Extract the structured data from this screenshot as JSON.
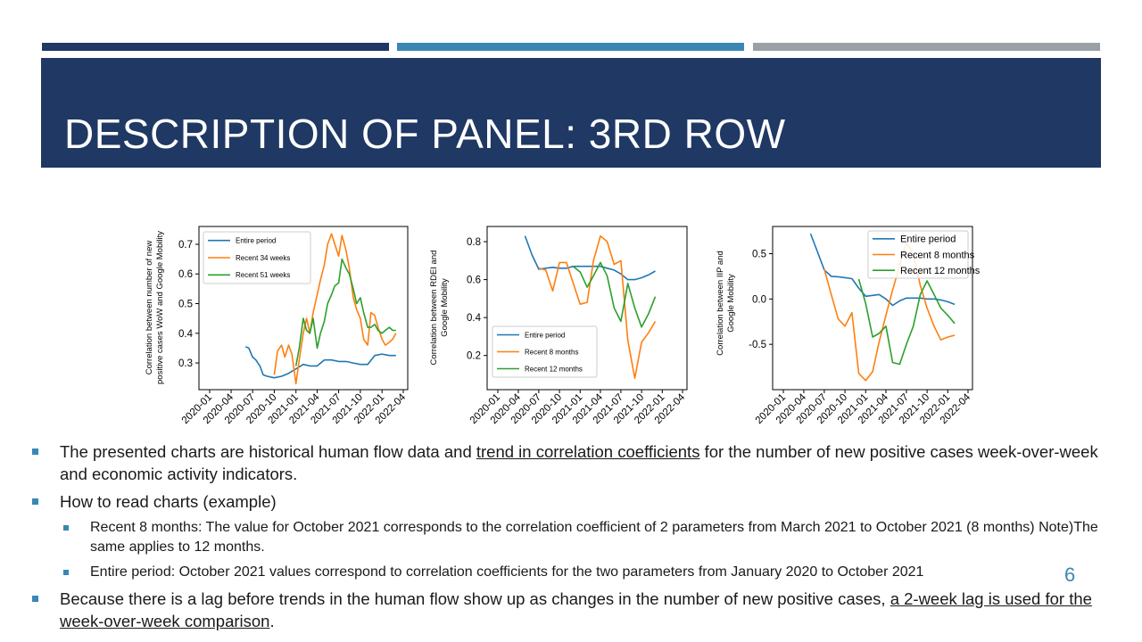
{
  "slide": {
    "title": "DESCRIPTION OF PANEL: 3RD ROW",
    "page_number": "6",
    "colors": {
      "dark_blue": "#1f3864",
      "mid_blue": "#3a87b4",
      "gray": "#9aa0a6",
      "series_blue": "#1f77b4",
      "series_orange": "#ff7f0e",
      "series_green": "#2ca02c"
    }
  },
  "chart_data": [
    {
      "type": "line",
      "ylabel": "Correlation between number of new positive cases WoW and Google Mobility",
      "ylabel_lines": [
        "Correlation between number of new",
        "positive cases WoW and Google Mobility"
      ],
      "xlabel": "",
      "x_ticks": [
        "2020-01",
        "2020-04",
        "2020-07",
        "2020-10",
        "2021-01",
        "2021-04",
        "2021-07",
        "2021-10",
        "2022-01",
        "2022-04"
      ],
      "y_ticks": [
        "0.3",
        "0.4",
        "0.5",
        "0.6",
        "0.7"
      ],
      "ylim": [
        0.21,
        0.76
      ],
      "legend_position": "top-left",
      "series": [
        {
          "name": "Entire period",
          "x": [
            "2020-06-01",
            "2020-06-15",
            "2020-07-01",
            "2020-07-15",
            "2020-08-01",
            "2020-08-15",
            "2020-09-01",
            "2020-10-01",
            "2020-11-01",
            "2020-12-01",
            "2021-01-01",
            "2021-02-01",
            "2021-03-01",
            "2021-04-01",
            "2021-05-01",
            "2021-06-01",
            "2021-07-01",
            "2021-08-01",
            "2021-09-01",
            "2021-10-01",
            "2021-11-01",
            "2021-12-01",
            "2022-01-01",
            "2022-02-01",
            "2022-03-01"
          ],
          "y": [
            0.355,
            0.35,
            0.32,
            0.31,
            0.29,
            0.26,
            0.255,
            0.25,
            0.255,
            0.265,
            0.28,
            0.295,
            0.29,
            0.29,
            0.31,
            0.31,
            0.305,
            0.305,
            0.3,
            0.295,
            0.295,
            0.325,
            0.33,
            0.325,
            0.325
          ]
        },
        {
          "name": "Recent 34 weeks",
          "x": [
            "2020-10-01",
            "2020-10-15",
            "2020-11-01",
            "2020-11-15",
            "2020-12-01",
            "2020-12-15",
            "2021-01-01",
            "2021-01-15",
            "2021-02-01",
            "2021-02-15",
            "2021-03-01",
            "2021-03-15",
            "2021-04-01",
            "2021-04-15",
            "2021-05-01",
            "2021-05-15",
            "2021-06-01",
            "2021-06-15",
            "2021-07-01",
            "2021-07-15",
            "2021-08-01",
            "2021-08-15",
            "2021-09-01",
            "2021-09-15",
            "2021-10-01",
            "2021-10-15",
            "2021-11-01",
            "2021-11-15",
            "2021-12-01",
            "2021-12-15",
            "2022-01-01",
            "2022-01-15",
            "2022-02-01",
            "2022-02-15",
            "2022-03-01"
          ],
          "y": [
            0.26,
            0.34,
            0.36,
            0.32,
            0.36,
            0.33,
            0.23,
            0.31,
            0.4,
            0.45,
            0.4,
            0.47,
            0.53,
            0.58,
            0.63,
            0.7,
            0.735,
            0.7,
            0.66,
            0.73,
            0.68,
            0.62,
            0.52,
            0.48,
            0.45,
            0.38,
            0.36,
            0.47,
            0.46,
            0.42,
            0.38,
            0.36,
            0.37,
            0.38,
            0.4
          ]
        },
        {
          "name": "Recent 51 weeks",
          "x": [
            "2021-01-01",
            "2021-01-15",
            "2021-02-01",
            "2021-02-15",
            "2021-03-01",
            "2021-03-15",
            "2021-04-01",
            "2021-04-15",
            "2021-05-01",
            "2021-05-15",
            "2021-06-01",
            "2021-06-15",
            "2021-07-01",
            "2021-07-15",
            "2021-08-01",
            "2021-08-15",
            "2021-09-01",
            "2021-09-15",
            "2021-10-01",
            "2021-10-15",
            "2021-11-01",
            "2021-11-15",
            "2021-12-01",
            "2021-12-15",
            "2022-01-01",
            "2022-01-15",
            "2022-02-01",
            "2022-02-15",
            "2022-03-01"
          ],
          "y": [
            0.29,
            0.35,
            0.45,
            0.41,
            0.4,
            0.45,
            0.35,
            0.4,
            0.44,
            0.5,
            0.53,
            0.56,
            0.57,
            0.65,
            0.62,
            0.6,
            0.55,
            0.5,
            0.52,
            0.47,
            0.42,
            0.42,
            0.43,
            0.41,
            0.4,
            0.41,
            0.42,
            0.41,
            0.41
          ]
        }
      ]
    },
    {
      "type": "line",
      "ylabel": "Correlation between RDEI and Google Mobility",
      "ylabel_lines": [
        "Correlation between RDEI and",
        "Google Mobility"
      ],
      "xlabel": "",
      "x_ticks": [
        "2020-01",
        "2020-04",
        "2020-07",
        "2020-10",
        "2021-01",
        "2021-04",
        "2021-07",
        "2021-10",
        "2022-01",
        "2022-04"
      ],
      "y_ticks": [
        "0.2",
        "0.4",
        "0.6",
        "0.8"
      ],
      "ylim": [
        0.02,
        0.88
      ],
      "legend_position": "lower-left",
      "series": [
        {
          "name": "Entire period",
          "x": [
            "2020-05-01",
            "2020-06-01",
            "2020-07-01",
            "2020-08-01",
            "2020-09-01",
            "2020-10-01",
            "2020-11-01",
            "2020-12-01",
            "2021-01-01",
            "2021-02-01",
            "2021-03-01",
            "2021-04-01",
            "2021-05-01",
            "2021-06-01",
            "2021-07-01",
            "2021-08-01",
            "2021-09-01",
            "2021-10-01",
            "2021-11-01",
            "2021-12-01"
          ],
          "y": [
            0.83,
            0.73,
            0.655,
            0.66,
            0.665,
            0.66,
            0.66,
            0.67,
            0.67,
            0.67,
            0.67,
            0.67,
            0.66,
            0.65,
            0.63,
            0.6,
            0.6,
            0.61,
            0.625,
            0.645
          ]
        },
        {
          "name": "Recent 8 months",
          "x": [
            "2020-07-01",
            "2020-08-01",
            "2020-09-01",
            "2020-10-01",
            "2020-11-01",
            "2020-12-01",
            "2021-01-01",
            "2021-02-01",
            "2021-03-01",
            "2021-04-01",
            "2021-05-01",
            "2021-06-01",
            "2021-07-01",
            "2021-08-01",
            "2021-09-01",
            "2021-10-01",
            "2021-11-01",
            "2021-12-01"
          ],
          "y": [
            0.66,
            0.65,
            0.54,
            0.69,
            0.69,
            0.58,
            0.47,
            0.48,
            0.7,
            0.83,
            0.8,
            0.68,
            0.7,
            0.28,
            0.08,
            0.27,
            0.32,
            0.38
          ]
        },
        {
          "name": "Recent 12 months",
          "x": [
            "2020-12-01",
            "2021-01-01",
            "2021-02-01",
            "2021-03-01",
            "2021-04-01",
            "2021-05-01",
            "2021-06-01",
            "2021-07-01",
            "2021-08-01",
            "2021-09-01",
            "2021-10-01",
            "2021-11-01",
            "2021-12-01"
          ],
          "y": [
            0.67,
            0.64,
            0.56,
            0.62,
            0.69,
            0.62,
            0.45,
            0.38,
            0.58,
            0.45,
            0.35,
            0.42,
            0.51
          ]
        }
      ]
    },
    {
      "type": "line",
      "ylabel": "Correlation between IIP and Google Mobility",
      "ylabel_lines": [
        "Correlation between IIP and",
        "Google Mobility"
      ],
      "xlabel": "",
      "x_ticks": [
        "2020-01",
        "2020-04",
        "2020-07",
        "2020-10",
        "2021-01",
        "2021-04",
        "2021-07",
        "2021-10",
        "2022-01",
        "2022-04"
      ],
      "y_ticks": [
        "-0.5",
        "0.0",
        "0.5"
      ],
      "ylim": [
        -1.0,
        0.8
      ],
      "legend_position": "top-right",
      "series": [
        {
          "name": "Entire period",
          "x": [
            "2020-05-01",
            "2020-06-01",
            "2020-07-01",
            "2020-08-01",
            "2020-09-01",
            "2020-10-01",
            "2020-11-01",
            "2020-12-01",
            "2021-01-01",
            "2021-02-01",
            "2021-03-01",
            "2021-04-01",
            "2021-05-01",
            "2021-06-01",
            "2021-07-01",
            "2021-08-01",
            "2021-09-01",
            "2021-10-01",
            "2021-11-01",
            "2021-12-01",
            "2022-01-01",
            "2022-02-01"
          ],
          "y": [
            0.72,
            0.52,
            0.32,
            0.25,
            0.245,
            0.235,
            0.225,
            0.12,
            0.03,
            0.04,
            0.05,
            0.0,
            -0.07,
            -0.02,
            0.01,
            0.01,
            0.01,
            0.0,
            0.0,
            -0.01,
            -0.03,
            -0.06
          ]
        },
        {
          "name": "Recent 8 months",
          "x": [
            "2020-07-01",
            "2020-08-01",
            "2020-09-01",
            "2020-10-01",
            "2020-11-01",
            "2020-12-01",
            "2021-01-01",
            "2021-02-01",
            "2021-03-01",
            "2021-04-01",
            "2021-05-01",
            "2021-06-01",
            "2021-07-01",
            "2021-08-01",
            "2021-09-01",
            "2021-10-01",
            "2021-11-01",
            "2021-12-01",
            "2022-01-01",
            "2022-02-01"
          ],
          "y": [
            0.33,
            0.05,
            -0.22,
            -0.3,
            -0.15,
            -0.82,
            -0.9,
            -0.8,
            -0.48,
            -0.18,
            0.1,
            0.37,
            0.62,
            0.5,
            0.15,
            -0.1,
            -0.3,
            -0.45,
            -0.42,
            -0.4
          ]
        },
        {
          "name": "Recent 12 months",
          "x": [
            "2020-12-01",
            "2021-01-01",
            "2021-02-01",
            "2021-03-01",
            "2021-04-01",
            "2021-05-01",
            "2021-06-01",
            "2021-07-01",
            "2021-08-01",
            "2021-09-01",
            "2021-10-01",
            "2021-11-01",
            "2021-12-01",
            "2022-01-01",
            "2022-02-01"
          ],
          "y": [
            0.22,
            -0.05,
            -0.42,
            -0.38,
            -0.3,
            -0.7,
            -0.72,
            -0.5,
            -0.3,
            0.05,
            0.2,
            0.05,
            -0.1,
            -0.18,
            -0.27
          ]
        }
      ]
    }
  ],
  "bullets": {
    "b1_pre": "The presented charts are historical human  flow data and ",
    "b1_link": "trend in correlation coefficients",
    "b1_post": " for the number  of new positive cases week-over-week and economic activity indicators.",
    "b2": "How to read charts (example)",
    "b3": "Recent 8 months: The value for October 2021 corresponds to the correlation coefficient of 2 parameters from March 2021 to October 2021 (8 months)     Note)The same applies to 12 months.",
    "b4": "Entire period: October 2021 values correspond to correlation coefficients for the two parameters from January 2020 to October 2021",
    "b5_pre": "Because there is a lag before trends in the human  flow show up as changes in the number  of new positive cases, ",
    "b5_link": "a 2-week lag is used for the week-over-week comparison",
    "b5_post": "."
  }
}
